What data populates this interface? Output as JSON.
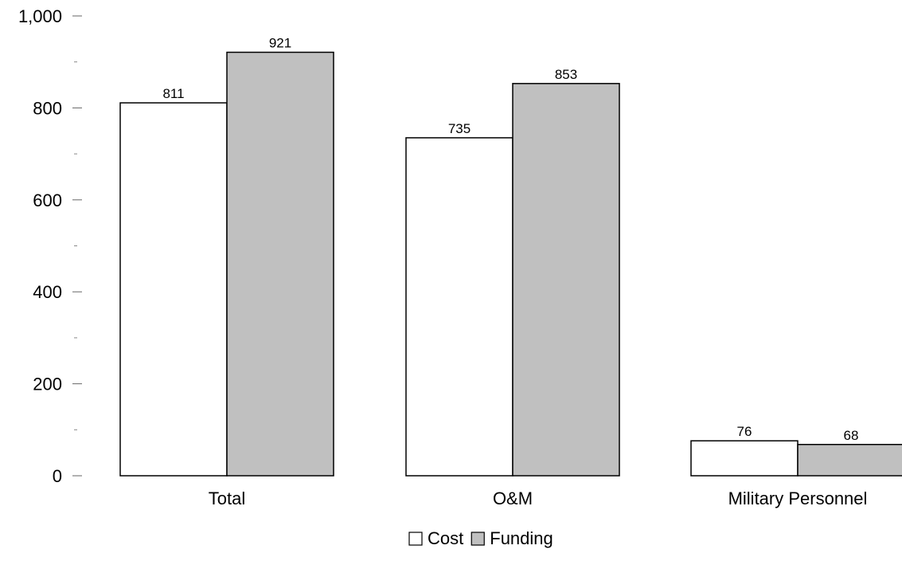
{
  "chart_data": {
    "type": "bar",
    "categories": [
      "Total",
      "O&M",
      "Military Personnel"
    ],
    "series": [
      {
        "name": "Cost",
        "values": [
          811,
          735,
          76
        ],
        "color": "#ffffff"
      },
      {
        "name": "Funding",
        "values": [
          921,
          853,
          68
        ],
        "color": "#c0c0c0"
      }
    ],
    "ylim": [
      0,
      1000
    ],
    "yticks": [
      0,
      200,
      400,
      600,
      800,
      1000
    ],
    "ytick_labels": [
      "0",
      "200",
      "400",
      "600",
      "800",
      "1,000"
    ],
    "minor_yticks": [
      100,
      300,
      500,
      700,
      900
    ],
    "data_labels": [
      [
        "811",
        "735",
        "76"
      ],
      [
        "921",
        "853",
        "68"
      ]
    ],
    "legend_position": "bottom-center",
    "grid": false,
    "title": "",
    "xlabel": "",
    "ylabel": ""
  }
}
